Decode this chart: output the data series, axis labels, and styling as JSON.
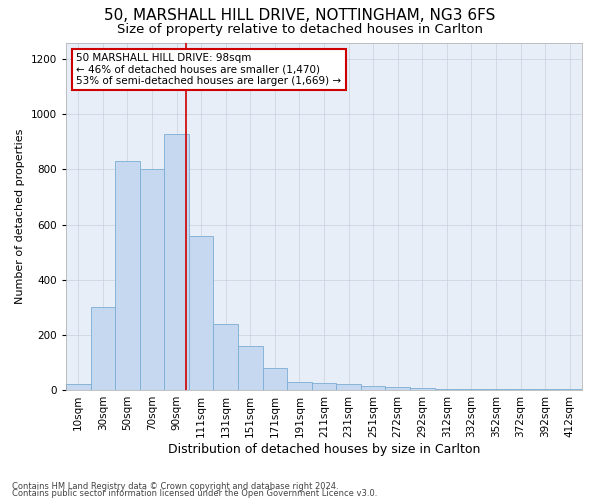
{
  "title1": "50, MARSHALL HILL DRIVE, NOTTINGHAM, NG3 6FS",
  "title2": "Size of property relative to detached houses in Carlton",
  "xlabel": "Distribution of detached houses by size in Carlton",
  "ylabel": "Number of detached properties",
  "footer1": "Contains HM Land Registry data © Crown copyright and database right 2024.",
  "footer2": "Contains public sector information licensed under the Open Government Licence v3.0.",
  "annotation_line1": "50 MARSHALL HILL DRIVE: 98sqm",
  "annotation_line2": "← 46% of detached houses are smaller (1,470)",
  "annotation_line3": "53% of semi-detached houses are larger (1,669) →",
  "bar_labels": [
    "10sqm",
    "30sqm",
    "50sqm",
    "70sqm",
    "90sqm",
    "111sqm",
    "131sqm",
    "151sqm",
    "171sqm",
    "191sqm",
    "211sqm",
    "231sqm",
    "251sqm",
    "272sqm",
    "292sqm",
    "312sqm",
    "332sqm",
    "352sqm",
    "372sqm",
    "392sqm",
    "412sqm"
  ],
  "bar_values": [
    20,
    300,
    830,
    800,
    930,
    560,
    240,
    160,
    80,
    30,
    25,
    20,
    15,
    10,
    8,
    5,
    5,
    3,
    3,
    3,
    3
  ],
  "bar_color": "#c5d8ef",
  "bar_edge_color": "#7aadd4",
  "red_line_color": "#cc0000",
  "ylim": [
    0,
    1260
  ],
  "yticks": [
    0,
    200,
    400,
    600,
    800,
    1000,
    1200
  ],
  "bg_color": "#e8eef8",
  "grid_color": "#c8d0e0",
  "annotation_box_edge": "#cc0000",
  "title1_fontsize": 11,
  "title2_fontsize": 9.5,
  "xlabel_fontsize": 9,
  "ylabel_fontsize": 8,
  "tick_fontsize": 7.5,
  "footer_fontsize": 6
}
